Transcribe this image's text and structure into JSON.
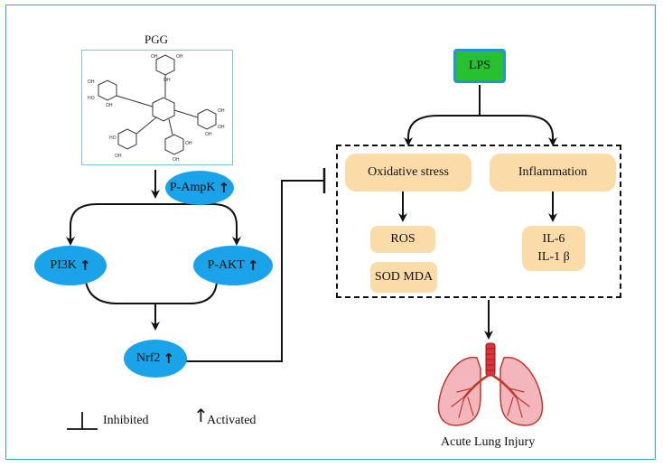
{
  "compound": {
    "title": "PGG"
  },
  "nodes": {
    "ampk": {
      "label": "P-AmpK",
      "arrow": "↑"
    },
    "pi3k": {
      "label": "PI3K",
      "arrow": "↑"
    },
    "akt": {
      "label": "P-AKT",
      "arrow": "↑"
    },
    "nrf2": {
      "label": "Nrf2",
      "arrow": "↑"
    }
  },
  "stimulus": {
    "label": "LPS"
  },
  "pathways": {
    "oxidative": {
      "label": "Oxidative stress"
    },
    "inflammation": {
      "label": "Inflammation"
    },
    "ros": {
      "label": "ROS"
    },
    "sod_mda": {
      "label": "SOD  MDA"
    },
    "il6": {
      "label": "IL-6"
    },
    "il1b": {
      "label": "IL-1 β"
    }
  },
  "outcome": {
    "label": "Acute Lung Injury"
  },
  "legend": {
    "inhibited": "Inhibited",
    "activated": "Activated",
    "activated_symbol": "↑"
  },
  "colors": {
    "frame": "#3aa6c9",
    "node_fill": "#1aa3e8",
    "pathway_fill": "#fbdca8",
    "stimulus_fill": "#27c02e",
    "stimulus_border": "#2196d3",
    "lung_fill": "#f4b6bd",
    "lung_stroke": "#c0392b",
    "airway": "#e0323a"
  }
}
